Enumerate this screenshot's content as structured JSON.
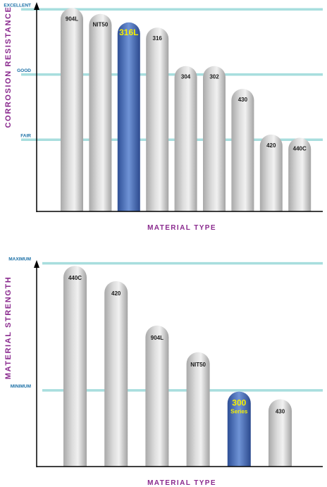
{
  "colors": {
    "accent_purple": "#8a2a8e",
    "level_label_blue": "#1a6fa6",
    "gridline": "#a8dede",
    "bar_gray": "#c4c4c4",
    "bar_highlight": "#3f67b4",
    "highlight_text": "#f5f000"
  },
  "chart_data": [
    {
      "type": "bar",
      "title": "",
      "xlabel": "MATERIAL TYPE",
      "ylabel": "CORROSION RESISTANCE",
      "levels": [
        {
          "label": "EXCELLENT",
          "value": 3
        },
        {
          "label": "GOOD",
          "value": 2
        },
        {
          "label": "FAIR",
          "value": 1
        }
      ],
      "categories": [
        "904L",
        "NIT50",
        "316L",
        "316",
        "304",
        "302",
        "430",
        "420",
        "440C"
      ],
      "values": [
        3.02,
        2.93,
        2.8,
        2.72,
        2.13,
        2.13,
        1.78,
        1.08,
        1.03
      ],
      "highlight": "316L",
      "ylim": [
        -0.1,
        3.1
      ]
    },
    {
      "type": "bar",
      "title": "",
      "xlabel": "MATERIAL TYPE",
      "ylabel": "MATERIAL STRENGTH",
      "levels": [
        {
          "label": "MAXIMUM",
          "value": 1
        },
        {
          "label": "MINIMUM",
          "value": 0
        }
      ],
      "categories": [
        "440C",
        "420",
        "904L",
        "NIT50",
        "300 Series",
        "430"
      ],
      "values": [
        0.98,
        0.86,
        0.51,
        0.3,
        -0.01,
        -0.07
      ],
      "highlight": "300 Series",
      "ylim": [
        -0.6,
        1.02
      ]
    }
  ]
}
